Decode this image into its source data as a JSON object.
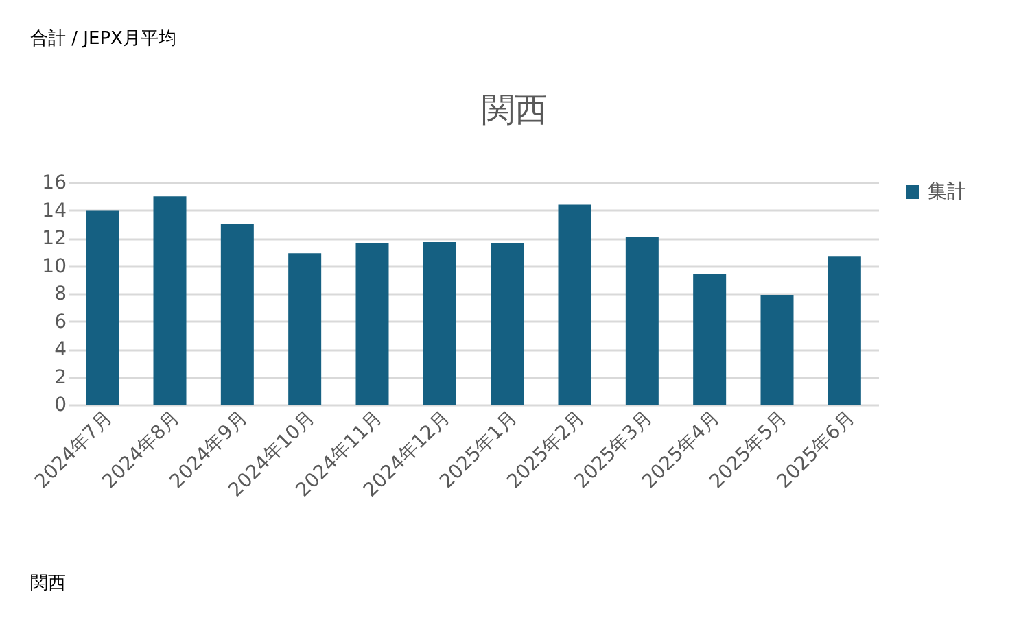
{
  "chart_data": {
    "type": "bar",
    "title": "関西",
    "categories": [
      "2024年7月",
      "2024年8月",
      "2024年9月",
      "2024年10月",
      "2024年11月",
      "2024年12月",
      "2025年1月",
      "2025年2月",
      "2025年3月",
      "2025年4月",
      "2025年5月",
      "2025年6月"
    ],
    "series": [
      {
        "name": "集計",
        "color": "#156082",
        "values": [
          14.0,
          15.0,
          13.0,
          10.9,
          11.6,
          11.7,
          11.6,
          14.4,
          12.1,
          9.4,
          7.9,
          10.7
        ]
      }
    ],
    "ylim": [
      0,
      16
    ],
    "yticks": [
      0,
      2,
      4,
      6,
      8,
      10,
      12,
      14,
      16
    ],
    "grid": "y",
    "legend": "right",
    "annotations": [
      "合計 / JEPX月平均",
      "関西"
    ]
  }
}
